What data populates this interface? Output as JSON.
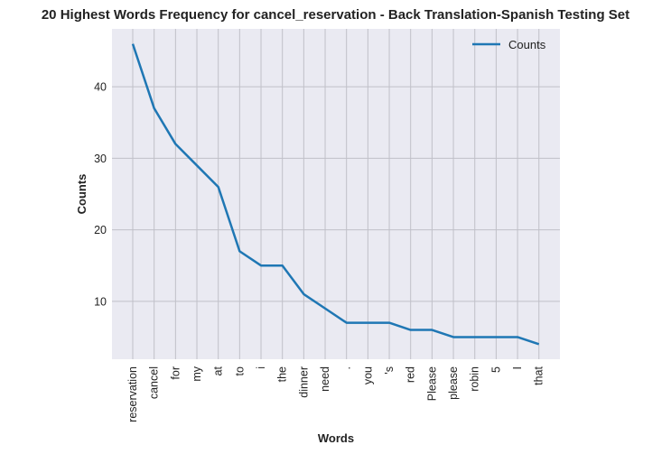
{
  "chart_data": {
    "type": "line",
    "title": "20 Highest Words Frequency for cancel_reservation - Back Translation-Spanish Testing Set",
    "xlabel": "Words",
    "ylabel": "Counts",
    "categories": [
      "reservation",
      "cancel",
      "for",
      "my",
      "at",
      "to",
      "i",
      "the",
      "dinner",
      "need",
      ".",
      "you",
      "'s",
      "red",
      "Please",
      "please",
      "robin",
      "5",
      "I",
      "that"
    ],
    "series": [
      {
        "name": "Counts",
        "values": [
          46,
          37,
          32,
          29,
          26,
          17,
          15,
          15,
          11,
          9,
          7,
          7,
          7,
          6,
          6,
          5,
          5,
          5,
          5,
          4
        ],
        "color": "#1f77b4"
      }
    ],
    "yticks": [
      10,
      20,
      30,
      40
    ],
    "ylim": [
      1.9,
      48.1
    ],
    "grid": true,
    "legend": "top-right",
    "background": "#eaeaf2",
    "grid_color": "#c0c0c8"
  }
}
